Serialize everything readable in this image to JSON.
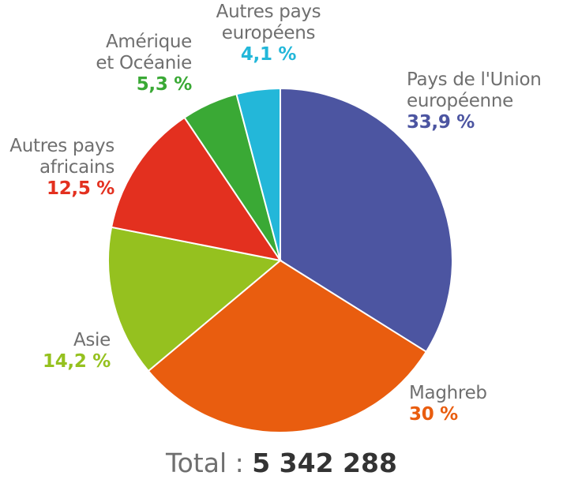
{
  "chart_data": {
    "type": "pie",
    "title": "",
    "start_angle_deg": 0,
    "direction": "clockwise",
    "center": [
      355,
      330
    ],
    "radius": 218,
    "slices": [
      {
        "label": "Pays de l'Union européenne",
        "value": 33.9,
        "display": "33,9 %",
        "color": "#4c55a1"
      },
      {
        "label": "Maghreb",
        "value": 30,
        "display": "30 %",
        "color": "#e95d0f"
      },
      {
        "label": "Asie",
        "value": 14.2,
        "display": "14,2 %",
        "color": "#95c11f"
      },
      {
        "label": "Autres pays africains",
        "value": 12.5,
        "display": "12,5 %",
        "color": "#e3301f"
      },
      {
        "label": "Amérique et Océanie",
        "value": 5.3,
        "display": "5,3 %",
        "color": "#3aa935"
      },
      {
        "label": "Autres pays européens",
        "value": 4.1,
        "display": "4,1 %",
        "color": "#23b7d9"
      }
    ],
    "total_label": "Total :",
    "total_value": "5 342 288"
  },
  "labels": {
    "ue": {
      "name": "Pays de l'Union\neuropéenne",
      "pct": "33,9 %"
    },
    "maghreb": {
      "name": "Maghreb",
      "pct": "30 %"
    },
    "asie": {
      "name": "Asie",
      "pct": "14,2 %"
    },
    "afrique": {
      "name": "Autres pays\nafricains",
      "pct": "12,5 %"
    },
    "amerique": {
      "name": "Amérique\net Océanie",
      "pct": "5,3 %"
    },
    "europe": {
      "name": "Autres pays\neuropéens",
      "pct": "4,1 %"
    }
  },
  "total": {
    "label": "Total : ",
    "value": "5 342 288"
  }
}
